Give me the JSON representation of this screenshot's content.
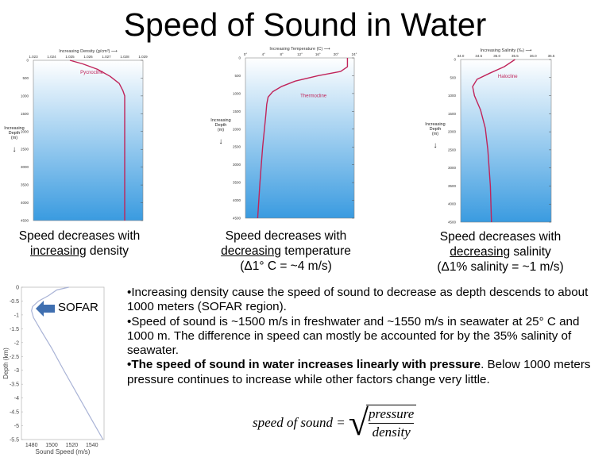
{
  "title": "Speed of Sound in Water",
  "captions": [
    {
      "line1": "Speed  decreases with",
      "underlined": "increasing",
      "rest": " density",
      "line3": ""
    },
    {
      "line1": "Speed  decreases with",
      "underlined": "decreasing",
      "rest": " temperature",
      "line3": "(Δ1° C = ~4 m/s)"
    },
    {
      "line1": "Speed  decreases with",
      "underlined": "decreasing",
      "rest": " salinity",
      "line3": "(Δ1% salinity = ~1 m/s)"
    }
  ],
  "sofar_label": "SOFAR",
  "bullets": [
    {
      "bold": "",
      "text": "•Increasing density cause the speed of sound to decrease as depth descends to about 1000 meters (SOFAR region)."
    },
    {
      "bold": "",
      "text": "•Speed of sound is ~1500 m/s in freshwater and ~1550 m/s in seawater at 25° C and 1000 m. The difference in speed can mostly be accounted for by the 35% salinity of seawater."
    },
    {
      "bold": "•The speed of sound in water increases linearly with pressure",
      "text": ". Below 1000 meters pressure continues to increase while other factors change very little."
    }
  ],
  "formula": {
    "lhs": "speed of sound =",
    "numerator": "pressure",
    "denominator": "density"
  },
  "colors": {
    "curve": "#c0245a",
    "water_top": "#ffffff",
    "water_bottom": "#3a9be0",
    "sofar_arrow": "#3f6fb0",
    "speed_curve": "#a9b3d6"
  },
  "chart_data": [
    {
      "type": "line",
      "id": "density",
      "xlabel": "Increasing Density (g/cm³) ⟶",
      "ylabel": "Increasing Depth (m)",
      "annotation": "Pycnocline",
      "xticks": [
        "1.023",
        "1.024",
        "1.025",
        "1.026",
        "1.027",
        "1.028",
        "1.029"
      ],
      "xlim": [
        1.023,
        1.029
      ],
      "ylim": [
        0,
        4500
      ],
      "yticks": [
        0,
        500,
        1000,
        1500,
        2000,
        2500,
        3000,
        3500,
        4000,
        4500
      ],
      "points": [
        [
          1.025,
          0
        ],
        [
          1.0257,
          100
        ],
        [
          1.0265,
          250
        ],
        [
          1.0272,
          450
        ],
        [
          1.0277,
          650
        ],
        [
          1.0279,
          850
        ],
        [
          1.028,
          1000
        ],
        [
          1.028,
          4500
        ]
      ]
    },
    {
      "type": "line",
      "id": "temperature",
      "xlabel": "Increasing Temperature (C) ⟶",
      "ylabel": "Increasing Depth (m)",
      "annotation": "Thermocline",
      "xticks": [
        "0°",
        "4°",
        "8°",
        "12°",
        "16°",
        "20°",
        "24°"
      ],
      "xlim": [
        0,
        24
      ],
      "ylim": [
        0,
        4500
      ],
      "yticks": [
        0,
        500,
        1000,
        1500,
        2000,
        2500,
        3000,
        3500,
        4000,
        4500
      ],
      "points": [
        [
          22.5,
          0
        ],
        [
          22.5,
          250
        ],
        [
          21,
          380
        ],
        [
          16,
          500
        ],
        [
          11,
          650
        ],
        [
          8,
          800
        ],
        [
          6,
          950
        ],
        [
          5,
          1100
        ],
        [
          4.7,
          1300
        ],
        [
          4.5,
          1600
        ],
        [
          3.8,
          2500
        ],
        [
          3.2,
          3500
        ],
        [
          2.7,
          4500
        ]
      ]
    },
    {
      "type": "line",
      "id": "salinity",
      "xlabel": "Increasing Salinity (‰) ⟶",
      "ylabel": "Increasing Depth (m)",
      "annotation": "Halocline",
      "xticks": [
        "34.0",
        "34.5",
        "35.0",
        "35.5",
        "36.0",
        "36.5"
      ],
      "xlim": [
        34.0,
        36.5
      ],
      "ylim": [
        0,
        4500
      ],
      "yticks": [
        0,
        500,
        1000,
        1500,
        2000,
        2500,
        3000,
        3500,
        4000,
        4500
      ],
      "points": [
        [
          35.5,
          0
        ],
        [
          35.2,
          200
        ],
        [
          34.8,
          380
        ],
        [
          34.45,
          550
        ],
        [
          34.33,
          750
        ],
        [
          34.38,
          1000
        ],
        [
          34.55,
          1400
        ],
        [
          34.68,
          1900
        ],
        [
          34.75,
          2500
        ],
        [
          34.82,
          3500
        ],
        [
          34.85,
          4500
        ]
      ]
    },
    {
      "type": "line",
      "id": "sound-speed",
      "xlabel": "Sound Speed (m/s)",
      "ylabel": "Depth (km)",
      "xticks": [
        "1480",
        "1500",
        "1520",
        "1540"
      ],
      "xtick_values": [
        1480,
        1500,
        1520,
        1540
      ],
      "xlim": [
        1470,
        1552
      ],
      "ylim": [
        -5.5,
        0
      ],
      "yticks": [
        0,
        -0.5,
        -1,
        -1.5,
        -2,
        -2.5,
        -3,
        -3.5,
        -4,
        -4.5,
        -5,
        -5.5
      ],
      "points": [
        [
          1517,
          0
        ],
        [
          1505,
          -0.1
        ],
        [
          1497,
          -0.3
        ],
        [
          1487,
          -0.5
        ],
        [
          1481,
          -0.7
        ],
        [
          1480,
          -0.85
        ],
        [
          1482,
          -1.1
        ],
        [
          1490,
          -1.6
        ],
        [
          1500,
          -2.2
        ],
        [
          1512,
          -3
        ],
        [
          1526,
          -3.9
        ],
        [
          1540,
          -4.8
        ],
        [
          1551,
          -5.5
        ]
      ]
    }
  ]
}
